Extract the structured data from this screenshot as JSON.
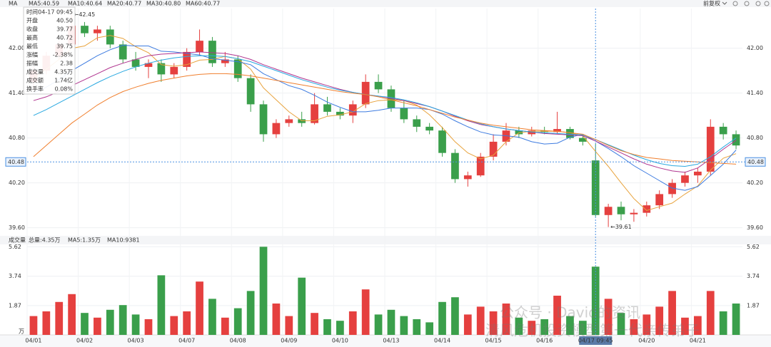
{
  "header": {
    "indicator": "MA",
    "adjust": "前复权"
  },
  "watermark": [
    "公众号 · David的资讯",
    "清风危机投资模型第一代亲传弟子"
  ],
  "chart_data": [
    {
      "type": "candlestick",
      "categories": [
        "04/01",
        null,
        null,
        null,
        "04/02",
        null,
        null,
        null,
        "04/03",
        null,
        null,
        null,
        "04/07",
        null,
        null,
        null,
        "04/08",
        null,
        null,
        null,
        "04/09",
        null,
        null,
        null,
        "04/10",
        null,
        null,
        null,
        "04/13",
        null,
        null,
        null,
        "04/14",
        null,
        null,
        null,
        "04/15",
        null,
        null,
        null,
        "04/16",
        null,
        null,
        null,
        null,
        null,
        null,
        null,
        "04/20",
        null,
        null,
        null,
        "04/21",
        null,
        null,
        null
      ],
      "open": [
        41.55,
        41.7,
        41.9,
        42.05,
        42.3,
        42.2,
        42.25,
        42.05,
        41.85,
        41.75,
        41.8,
        41.65,
        41.75,
        41.95,
        42.1,
        41.8,
        41.85,
        41.6,
        41.25,
        40.85,
        41.0,
        41.05,
        41.0,
        41.25,
        41.15,
        41.1,
        41.25,
        41.55,
        41.45,
        41.2,
        41.05,
        40.95,
        40.9,
        40.6,
        40.25,
        40.3,
        40.55,
        40.75,
        40.9,
        40.85,
        40.9,
        40.88,
        40.92,
        40.8,
        40.5,
        39.77,
        39.88,
        39.78,
        39.8,
        39.9,
        40.05,
        40.2,
        40.3,
        40.35,
        40.95,
        40.85
      ],
      "high": [
        41.75,
        41.95,
        42.1,
        42.45,
        42.35,
        42.3,
        42.3,
        42.1,
        41.95,
        41.85,
        41.85,
        41.8,
        42.0,
        42.25,
        42.15,
        41.95,
        41.9,
        41.65,
        41.3,
        41.05,
        41.1,
        41.15,
        41.4,
        41.35,
        41.2,
        41.3,
        41.65,
        41.65,
        41.5,
        41.3,
        41.1,
        41.0,
        40.95,
        40.65,
        40.35,
        40.6,
        40.85,
        41.0,
        40.95,
        40.95,
        40.95,
        41.15,
        40.95,
        40.85,
        40.72,
        39.92,
        39.95,
        39.85,
        39.95,
        40.1,
        40.25,
        40.35,
        40.4,
        41.05,
        41.0,
        40.9
      ],
      "low": [
        41.45,
        41.65,
        41.85,
        42.0,
        42.15,
        42.1,
        42.0,
        41.8,
        41.7,
        41.6,
        41.55,
        41.6,
        41.7,
        41.9,
        41.75,
        41.75,
        41.55,
        41.15,
        40.75,
        40.8,
        40.95,
        40.95,
        40.98,
        41.1,
        41.05,
        41.0,
        41.2,
        41.4,
        41.15,
        41.0,
        40.88,
        40.85,
        40.55,
        40.2,
        40.15,
        40.28,
        40.5,
        40.7,
        40.8,
        40.82,
        40.85,
        40.85,
        40.78,
        40.7,
        39.75,
        39.61,
        39.7,
        39.68,
        39.75,
        39.85,
        40.0,
        40.15,
        40.2,
        40.3,
        40.78,
        40.65
      ],
      "close": [
        41.7,
        41.9,
        42.05,
        42.3,
        42.2,
        42.25,
        42.05,
        41.85,
        41.75,
        41.8,
        41.65,
        41.75,
        41.95,
        42.1,
        41.8,
        41.85,
        41.6,
        41.25,
        40.85,
        41.0,
        41.05,
        41.0,
        41.25,
        41.15,
        41.1,
        41.25,
        41.55,
        41.45,
        41.2,
        41.05,
        40.95,
        40.9,
        40.6,
        40.25,
        40.3,
        40.55,
        40.75,
        40.9,
        40.85,
        40.9,
        40.88,
        40.92,
        40.8,
        40.75,
        39.77,
        39.88,
        39.78,
        39.8,
        39.9,
        40.05,
        40.2,
        40.3,
        40.35,
        40.95,
        40.85,
        40.7
      ],
      "up_color": "#e5403f",
      "down_color": "#3a9f4b",
      "ylim": [
        39.53,
        42.53
      ],
      "yticks": [
        {
          "value": 39.6,
          "label": "39.60"
        },
        {
          "value": 40.2,
          "label": "40.20"
        },
        {
          "value": 40.8,
          "label": "40.80"
        },
        {
          "value": 41.4,
          "label": "41.40"
        },
        {
          "value": 42,
          "label": "42.00"
        }
      ],
      "series": [
        {
          "name": "MA5:40.59",
          "color": "#e8a33d",
          "values": [
            41.6,
            41.72,
            41.85,
            42.0,
            42.03,
            42.14,
            42.17,
            42.13,
            42.02,
            41.94,
            41.78,
            41.76,
            41.78,
            41.84,
            41.85,
            41.89,
            41.86,
            41.72,
            41.47,
            41.31,
            41.15,
            41.03,
            41.03,
            41.09,
            41.11,
            41.15,
            41.26,
            41.3,
            41.31,
            41.3,
            41.24,
            41.11,
            40.94,
            40.75,
            40.6,
            40.52,
            40.57,
            40.75,
            40.87,
            40.89,
            40.89,
            40.89,
            40.87,
            40.83,
            40.62,
            40.42,
            40.2,
            39.99,
            39.83,
            39.88,
            39.93,
            40.05,
            40.16,
            40.37,
            40.53,
            40.59
          ]
        },
        {
          "name": "MA10:40.64",
          "color": "#3d7be0",
          "values": [
            41.4,
            41.48,
            41.58,
            41.7,
            41.8,
            41.9,
            41.98,
            42.04,
            42.03,
            42.03,
            41.96,
            41.95,
            41.93,
            41.91,
            41.86,
            41.84,
            41.82,
            41.78,
            41.66,
            41.58,
            41.5,
            41.45,
            41.37,
            41.28,
            41.21,
            41.15,
            41.15,
            41.17,
            41.2,
            41.2,
            41.2,
            41.18,
            41.12,
            41.03,
            40.95,
            40.88,
            40.84,
            40.83,
            40.81,
            40.75,
            40.72,
            40.73,
            40.81,
            40.85,
            40.76,
            40.66,
            40.55,
            40.43,
            40.33,
            40.23,
            40.13,
            40.1,
            40.15,
            40.3,
            40.45,
            40.64
          ]
        },
        {
          "name": "MA20:40.77",
          "color": "#b0348f",
          "values": [
            41.3,
            41.35,
            41.42,
            41.5,
            41.58,
            41.66,
            41.74,
            41.8,
            41.85,
            41.9,
            41.92,
            41.93,
            41.94,
            41.95,
            41.94,
            41.93,
            41.9,
            41.85,
            41.78,
            41.72,
            41.66,
            41.6,
            41.55,
            41.5,
            41.45,
            41.41,
            41.38,
            41.36,
            41.33,
            41.3,
            41.26,
            41.22,
            41.16,
            41.09,
            41.03,
            40.98,
            40.95,
            40.92,
            40.9,
            40.88,
            40.86,
            40.85,
            40.84,
            40.83,
            40.76,
            40.68,
            40.6,
            40.52,
            40.45,
            40.4,
            40.36,
            40.34,
            40.4,
            40.52,
            40.65,
            40.77
          ]
        },
        {
          "name": "MA30:40.80",
          "color": "#29a8e0",
          "values": [
            41.1,
            41.18,
            41.27,
            41.36,
            41.45,
            41.54,
            41.62,
            41.69,
            41.75,
            41.8,
            41.84,
            41.87,
            41.89,
            41.9,
            41.9,
            41.89,
            41.86,
            41.82,
            41.76,
            41.7,
            41.64,
            41.58,
            41.53,
            41.48,
            41.44,
            41.41,
            41.38,
            41.36,
            41.34,
            41.31,
            41.27,
            41.22,
            41.16,
            41.1,
            41.04,
            40.99,
            40.95,
            40.92,
            40.9,
            40.88,
            40.87,
            40.86,
            40.85,
            40.84,
            40.78,
            40.71,
            40.64,
            40.57,
            40.51,
            40.46,
            40.43,
            40.42,
            40.45,
            40.55,
            40.68,
            40.8
          ]
        },
        {
          "name": "MA60:40.77",
          "color": "#f07f2e",
          "values": [
            40.55,
            40.7,
            40.85,
            41.0,
            41.12,
            41.24,
            41.34,
            41.42,
            41.48,
            41.53,
            41.57,
            41.6,
            41.63,
            41.65,
            41.66,
            41.66,
            41.65,
            41.63,
            41.6,
            41.57,
            41.54,
            41.51,
            41.48,
            41.45,
            41.42,
            41.4,
            41.38,
            41.35,
            41.31,
            41.27,
            41.23,
            41.18,
            41.13,
            41.08,
            41.04,
            41.0,
            40.97,
            40.95,
            40.93,
            40.91,
            40.9,
            40.89,
            40.87,
            40.85,
            40.78,
            40.7,
            40.63,
            40.58,
            40.54,
            40.52,
            40.5,
            40.49,
            40.48,
            40.47,
            40.46,
            40.45
          ]
        }
      ],
      "annotations": [
        {
          "value": 42.45,
          "label": "←42.45"
        },
        {
          "value": 39.61,
          "label": "←39.61"
        }
      ],
      "crosshair": {
        "price": 40.48,
        "time": "04/17 09:45",
        "color": "#4a90e2"
      },
      "tooltip": [
        {
          "label": "时间",
          "value": "04-17 09:45",
          "color": "#333333"
        },
        {
          "label": "开盘",
          "value": "40.50",
          "color": "#3a9f4b"
        },
        {
          "label": "收盘",
          "value": "39.77",
          "color": "#3a9f4b"
        },
        {
          "label": "最高",
          "value": "40.72",
          "color": "#e5403f"
        },
        {
          "label": "最低",
          "value": "39.75",
          "color": "#3a9f4b"
        },
        {
          "label": "涨幅",
          "value": "-2.38%",
          "color": "#3a9f4b"
        },
        {
          "label": "振幅",
          "value": "2.38",
          "color": "#333333"
        },
        {
          "label": "成交量",
          "value": "4.35万",
          "color": "#333333"
        },
        {
          "label": "成交额",
          "value": "1.74亿",
          "color": "#333333"
        },
        {
          "label": "换手率",
          "value": "0.08%",
          "color": "#333333"
        }
      ]
    },
    {
      "type": "bar",
      "title": "成交量",
      "legend": [
        {
          "text": "总量:4.35万",
          "color": "#3a9f4b"
        },
        {
          "text": "MA5:1.35万",
          "color": "#e8a33d"
        },
        {
          "text": "MA10:9381",
          "color": "#3d7be0"
        }
      ],
      "values": [
        1.2,
        1.5,
        2.1,
        2.6,
        1.4,
        1.1,
        1.6,
        1.9,
        1.3,
        1.0,
        3.8,
        1.2,
        1.5,
        3.4,
        2.3,
        1.1,
        1.7,
        2.8,
        5.62,
        2.0,
        1.2,
        3.65,
        1.4,
        1.0,
        0.9,
        1.5,
        2.9,
        1.3,
        1.6,
        1.2,
        1.0,
        0.8,
        2.1,
        2.4,
        1.3,
        1.8,
        1.5,
        2.0,
        1.1,
        0.9,
        1.0,
        2.5,
        1.2,
        0.9,
        4.35,
        2.3,
        1.4,
        1.0,
        1.3,
        1.8,
        2.8,
        1.1,
        1.2,
        2.8,
        1.5,
        2.0
      ],
      "unit": "万",
      "ylim": [
        0,
        5.77
      ],
      "yticks": [
        1.87,
        3.74,
        5.62
      ]
    }
  ]
}
